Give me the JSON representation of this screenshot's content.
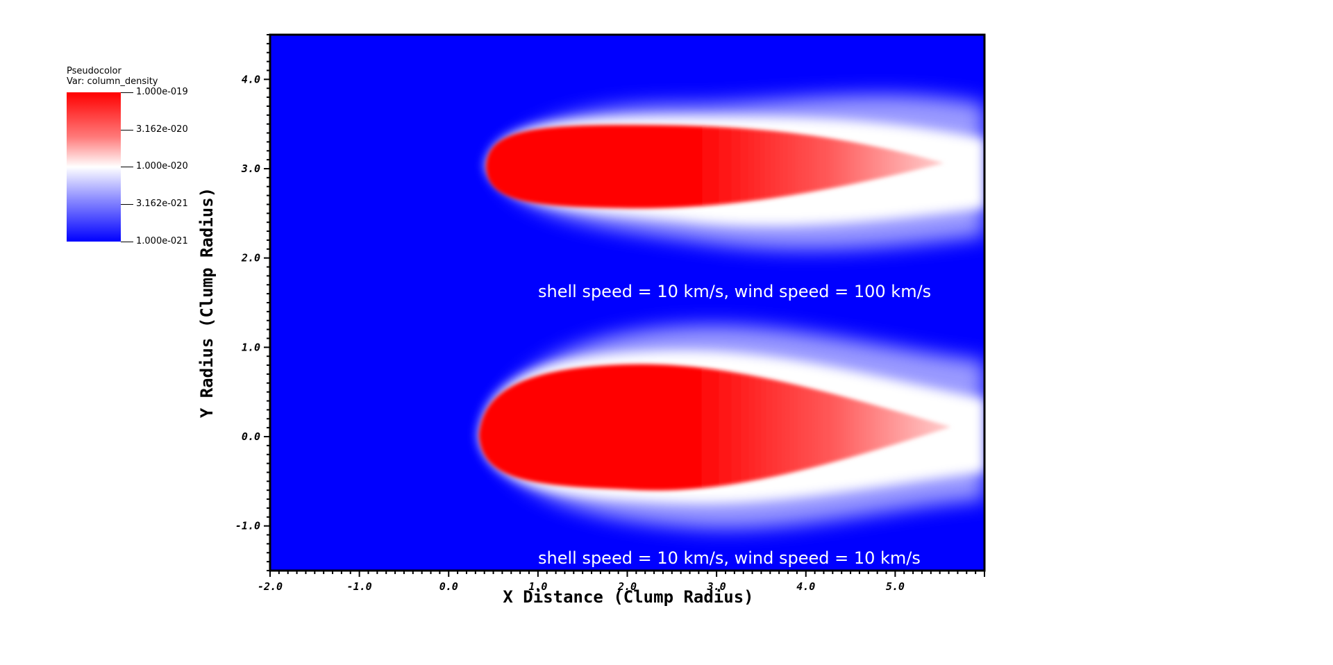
{
  "legend": {
    "title": "Pseudocolor",
    "var_label": "Var: column_density",
    "ticks": [
      "1.000e-019",
      "3.162e-020",
      "1.000e-020",
      "3.162e-021",
      "1.000e-021"
    ]
  },
  "chart_data": {
    "type": "heatmap",
    "xlabel": "X Distance (Clump Radius)",
    "ylabel": "Y Radius (Clump Radius)",
    "xlim": [
      -2.0,
      6.0
    ],
    "ylim": [
      -1.5,
      4.5
    ],
    "x_tick_labels": [
      "-2.0",
      "-1.0",
      "0.0",
      "1.0",
      "2.0",
      "3.0",
      "4.0",
      "5.0"
    ],
    "y_tick_labels": [
      "-1.0",
      "0.0",
      "1.0",
      "2.0",
      "3.0",
      "4.0"
    ],
    "colorscale": {
      "low": "#0000ff",
      "mid": "#ffffff",
      "high": "#ff0000",
      "log": true,
      "min": "1.000e-021",
      "max": "1.000e-019"
    },
    "annotations": [
      "shell speed = 10 km/s, wind speed = 100 km/s",
      "shell speed = 10 km/s, wind speed = 10 km/s"
    ],
    "features": [
      {
        "name": "upper-clump-tail",
        "center_y": 3.0,
        "head_x": 0.4,
        "tail_x": 6.0,
        "half_width": 0.5
      },
      {
        "name": "lower-clump-tail",
        "center_y": 0.0,
        "head_x": 0.35,
        "tail_x": 6.0,
        "half_width": 0.75
      }
    ]
  }
}
